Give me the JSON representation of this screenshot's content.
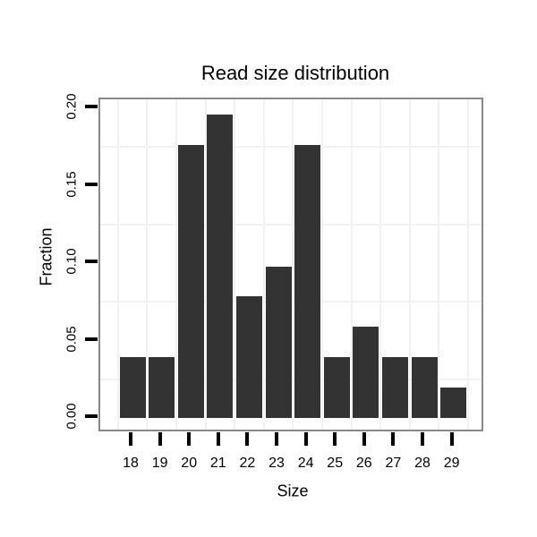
{
  "chart_data": {
    "type": "bar",
    "title": "Read size distribution",
    "xlabel": "Size",
    "ylabel": "Fraction",
    "categories": [
      "18",
      "19",
      "20",
      "21",
      "22",
      "23",
      "24",
      "25",
      "26",
      "27",
      "28",
      "29"
    ],
    "values": [
      0.0392,
      0.0392,
      0.1765,
      0.1961,
      0.0784,
      0.098,
      0.1765,
      0.0392,
      0.0588,
      0.0392,
      0.0392,
      0.0196
    ],
    "yticks": [
      {
        "value": 0.0,
        "label": "0.00"
      },
      {
        "value": 0.05,
        "label": "0.05"
      },
      {
        "value": 0.1,
        "label": "0.10"
      },
      {
        "value": 0.15,
        "label": "0.15"
      },
      {
        "value": 0.2,
        "label": "0.20"
      }
    ],
    "ylim": [
      -0.0098,
      0.2059
    ],
    "grid": {
      "horizontal_lines_at": [
        0.025,
        0.075,
        0.125,
        0.175
      ],
      "vertical_lines": "between-categories",
      "visible": true
    },
    "legend": "none",
    "colors": {
      "bar": "#333333",
      "panel_border": "#898989",
      "panel_background": "#ffffff",
      "gridline": "#f2f2f2",
      "axis_tick": "#000000",
      "text": "#000000",
      "background": "#ffffff"
    }
  }
}
